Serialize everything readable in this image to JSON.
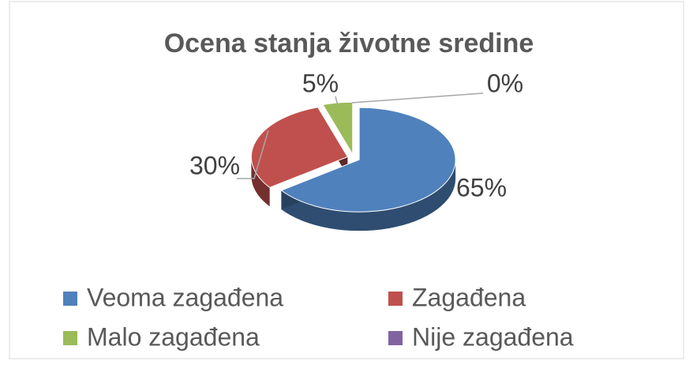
{
  "chart_data": {
    "type": "pie",
    "title": "Ocena stanja životne sredine",
    "categories": [
      "Veoma zagađena",
      "Zagađena",
      "Malo zagađena",
      "Nije zagađena"
    ],
    "values": [
      65,
      30,
      5,
      0
    ],
    "value_labels": [
      "65%",
      "30%",
      "5%",
      "0%"
    ],
    "colors": [
      "#4f81bd",
      "#c0504d",
      "#9bbb59",
      "#8064a2"
    ],
    "legend": "bottom"
  }
}
